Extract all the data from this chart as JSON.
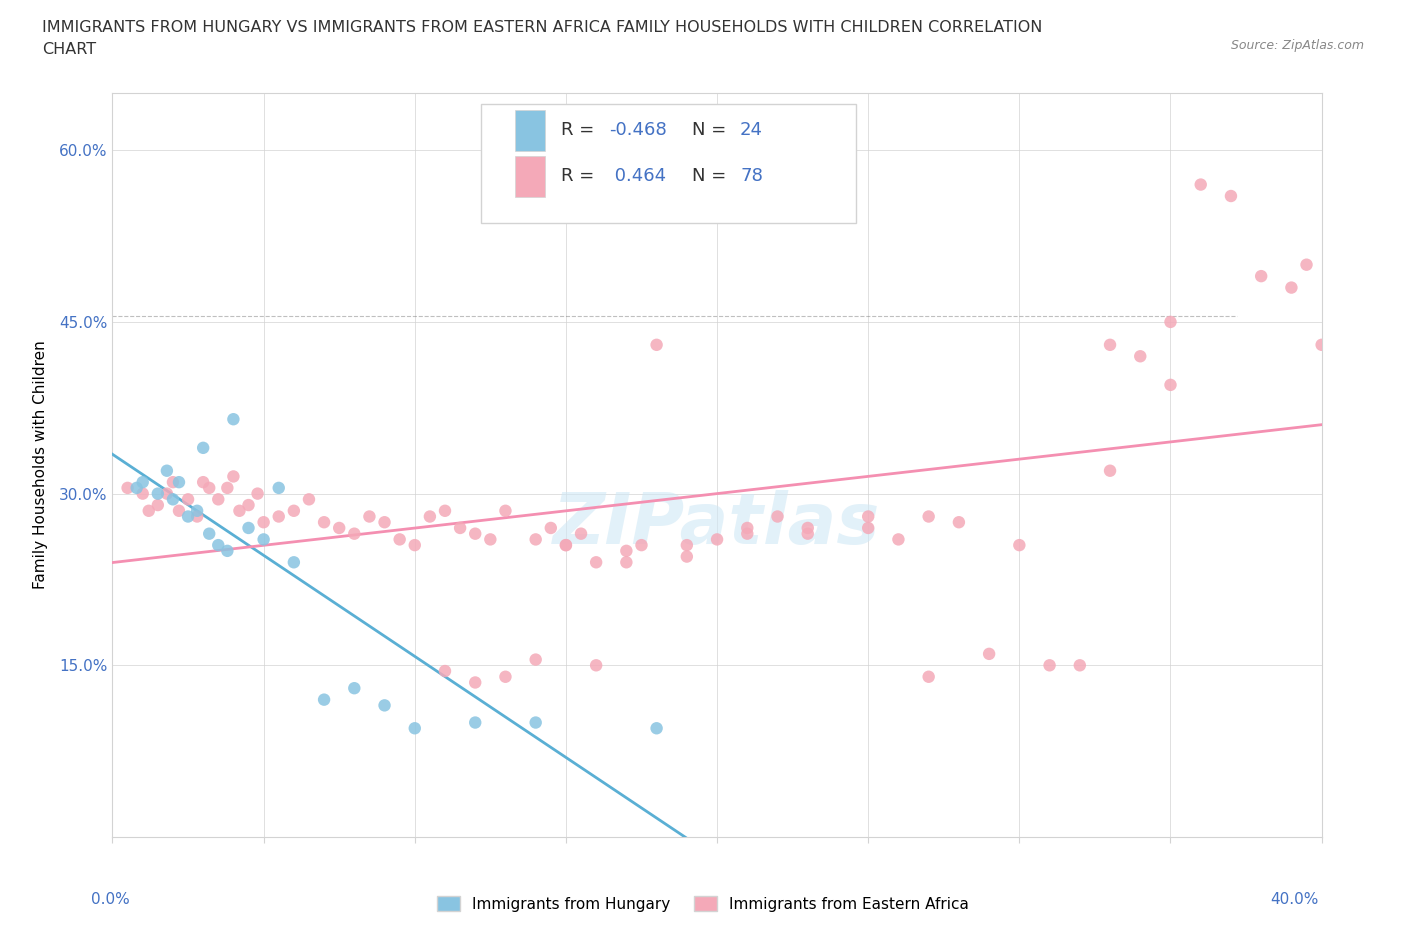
{
  "title_line1": "IMMIGRANTS FROM HUNGARY VS IMMIGRANTS FROM EASTERN AFRICA FAMILY HOUSEHOLDS WITH CHILDREN CORRELATION",
  "title_line2": "CHART",
  "source": "Source: ZipAtlas.com",
  "ylabel": "Family Households with Children",
  "yticks": [
    "15.0%",
    "30.0%",
    "45.0%",
    "60.0%"
  ],
  "ytick_vals": [
    0.15,
    0.3,
    0.45,
    0.6
  ],
  "xlim": [
    0.0,
    0.4
  ],
  "ylim": [
    0.0,
    0.65
  ],
  "color_hungary": "#89c4e1",
  "color_eastern_africa": "#f4a9b8",
  "trendline_color_hungary": "#5aafd4",
  "trendline_color_eastern_africa": "#f48fb1",
  "watermark": "ZIPatlas",
  "hungary_x": [
    0.008,
    0.01,
    0.015,
    0.018,
    0.02,
    0.022,
    0.025,
    0.028,
    0.03,
    0.032,
    0.035,
    0.038,
    0.04,
    0.045,
    0.05,
    0.055,
    0.06,
    0.07,
    0.08,
    0.09,
    0.1,
    0.12,
    0.14,
    0.18
  ],
  "hungary_y": [
    0.305,
    0.31,
    0.3,
    0.32,
    0.295,
    0.31,
    0.28,
    0.285,
    0.34,
    0.265,
    0.255,
    0.25,
    0.365,
    0.27,
    0.26,
    0.305,
    0.24,
    0.12,
    0.13,
    0.115,
    0.095,
    0.1,
    0.1,
    0.095
  ],
  "eastern_africa_x": [
    0.005,
    0.01,
    0.012,
    0.015,
    0.018,
    0.02,
    0.022,
    0.025,
    0.028,
    0.03,
    0.032,
    0.035,
    0.038,
    0.04,
    0.042,
    0.045,
    0.048,
    0.05,
    0.055,
    0.06,
    0.065,
    0.07,
    0.075,
    0.08,
    0.085,
    0.09,
    0.095,
    0.1,
    0.105,
    0.11,
    0.115,
    0.12,
    0.125,
    0.13,
    0.14,
    0.145,
    0.15,
    0.155,
    0.16,
    0.17,
    0.175,
    0.18,
    0.19,
    0.2,
    0.21,
    0.22,
    0.23,
    0.25,
    0.26,
    0.27,
    0.28,
    0.3,
    0.32,
    0.33,
    0.34,
    0.35,
    0.36,
    0.37,
    0.38,
    0.39,
    0.395,
    0.4,
    0.35,
    0.33,
    0.31,
    0.29,
    0.27,
    0.16,
    0.14,
    0.13,
    0.12,
    0.11,
    0.25,
    0.23,
    0.21,
    0.19,
    0.17,
    0.15
  ],
  "eastern_africa_y": [
    0.305,
    0.3,
    0.285,
    0.29,
    0.3,
    0.31,
    0.285,
    0.295,
    0.28,
    0.31,
    0.305,
    0.295,
    0.305,
    0.315,
    0.285,
    0.29,
    0.3,
    0.275,
    0.28,
    0.285,
    0.295,
    0.275,
    0.27,
    0.265,
    0.28,
    0.275,
    0.26,
    0.255,
    0.28,
    0.285,
    0.27,
    0.265,
    0.26,
    0.285,
    0.26,
    0.27,
    0.255,
    0.265,
    0.24,
    0.25,
    0.255,
    0.43,
    0.255,
    0.26,
    0.265,
    0.28,
    0.27,
    0.27,
    0.26,
    0.28,
    0.275,
    0.255,
    0.15,
    0.43,
    0.42,
    0.45,
    0.57,
    0.56,
    0.49,
    0.48,
    0.5,
    0.43,
    0.395,
    0.32,
    0.15,
    0.16,
    0.14,
    0.15,
    0.155,
    0.14,
    0.135,
    0.145,
    0.28,
    0.265,
    0.27,
    0.245,
    0.24,
    0.255
  ]
}
